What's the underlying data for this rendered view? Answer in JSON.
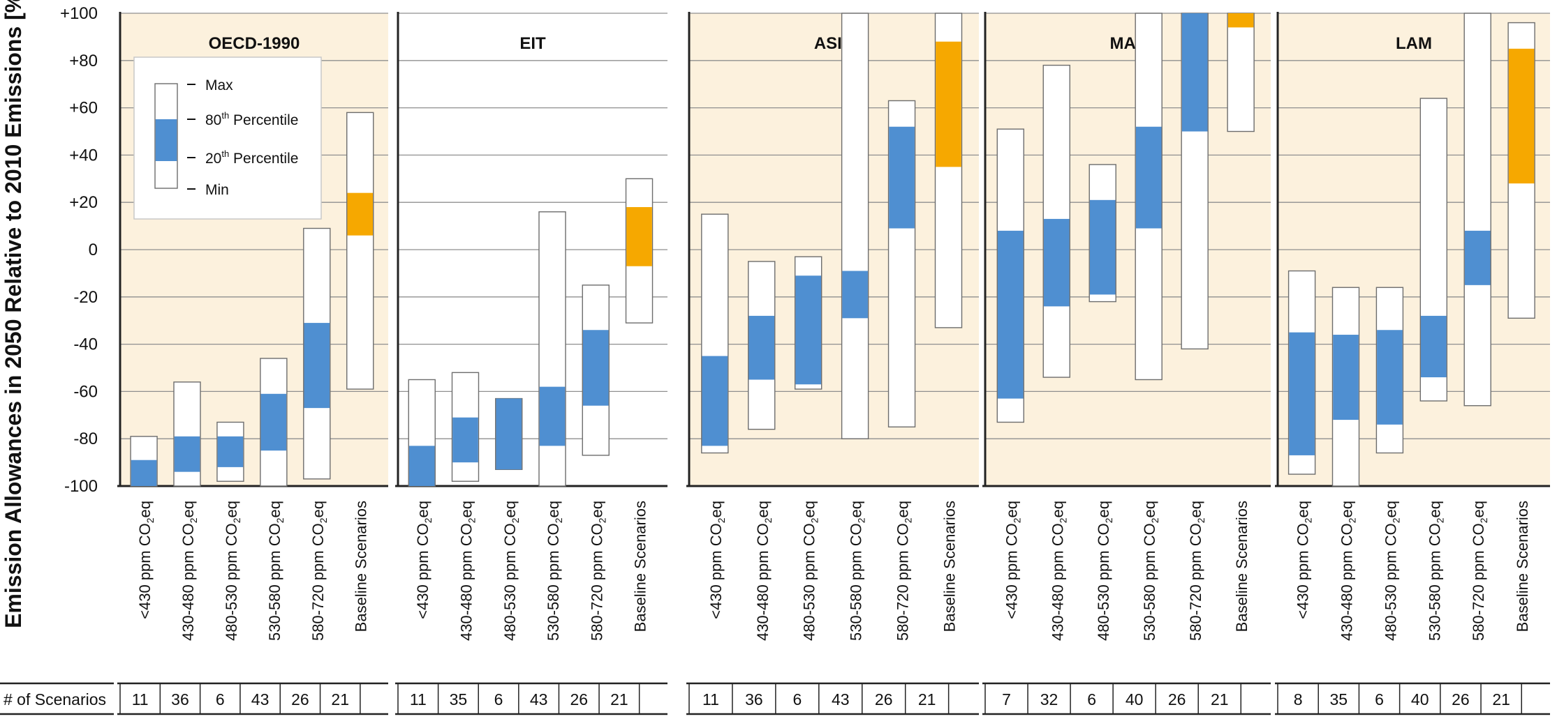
{
  "chart_data": {
    "type": "bar",
    "ylabel": "Emission Allowances in 2050 Relative to 2010 Emissions [%]",
    "ylim": [
      -100,
      100
    ],
    "yticks": [
      "+100",
      "+80",
      "+60",
      "+40",
      "+20",
      "0",
      "-20",
      "-40",
      "-60",
      "-80",
      "-100"
    ],
    "ytick_values": [
      100,
      80,
      60,
      40,
      20,
      0,
      -20,
      -40,
      -60,
      -80,
      -100
    ],
    "categories": [
      "<430 ppm CO2eq",
      "430-480 ppm CO2eq",
      "480-530 ppm CO2eq",
      "530-580 ppm CO2eq",
      "580-720 ppm CO2eq",
      "Baseline Scenarios"
    ],
    "category_labels": [
      {
        "pre": "<430 ppm CO",
        "sub": "2",
        "post": "eq"
      },
      {
        "pre": "430-480 ppm CO",
        "sub": "2",
        "post": "eq"
      },
      {
        "pre": "480-530 ppm CO",
        "sub": "2",
        "post": "eq"
      },
      {
        "pre": "530-580 ppm CO",
        "sub": "2",
        "post": "eq"
      },
      {
        "pre": "580-720 ppm CO",
        "sub": "2",
        "post": "eq"
      },
      {
        "pre": "Baseline Scenarios",
        "sub": "",
        "post": ""
      }
    ],
    "scenario_label": "# of Scenarios",
    "legend": {
      "placement": "top-left",
      "items": [
        {
          "text": "Max",
          "sup": ""
        },
        {
          "text": "80",
          "sup": "th",
          "rest": " Percentile"
        },
        {
          "text": "20",
          "sup": "th",
          "rest": " Percentile"
        },
        {
          "text": "Min",
          "sup": ""
        }
      ]
    },
    "colors": {
      "panel_bg": "#fcf1dd",
      "percentile_fill": "#4f8fd1",
      "baseline_fill": "#f6a800",
      "box_fill": "#ffffff",
      "box_stroke": "#6d6d6d",
      "grid": "#8f8f8f"
    },
    "panels": [
      {
        "name": "OECD-1990",
        "shaded": true,
        "counts": [
          "11",
          "36",
          "6",
          "43",
          "26",
          "21"
        ],
        "bars": [
          {
            "min": -100,
            "p20": -100,
            "p80": -89,
            "max": -79
          },
          {
            "min": -100,
            "p20": -94,
            "p80": -79,
            "max": -56
          },
          {
            "min": -98,
            "p20": -92,
            "p80": -79,
            "max": -73
          },
          {
            "min": -100,
            "p20": -85,
            "p80": -61,
            "max": -46
          },
          {
            "min": -97,
            "p20": -67,
            "p80": -31,
            "max": 9
          },
          {
            "min": -59,
            "p20": 6,
            "p80": 24,
            "max": 58
          }
        ]
      },
      {
        "name": "EIT",
        "shaded": false,
        "counts": [
          "11",
          "35",
          "6",
          "43",
          "26",
          "21"
        ],
        "bars": [
          {
            "min": -100,
            "p20": -100,
            "p80": -83,
            "max": -55
          },
          {
            "min": -98,
            "p20": -90,
            "p80": -71,
            "max": -52
          },
          {
            "min": -93,
            "p20": -93,
            "p80": -63,
            "max": -63
          },
          {
            "min": -100,
            "p20": -83,
            "p80": -58,
            "max": 16
          },
          {
            "min": -87,
            "p20": -66,
            "p80": -34,
            "max": -15
          },
          {
            "min": -31,
            "p20": -7,
            "p80": 18,
            "max": 30
          }
        ]
      },
      {
        "name": "ASIA",
        "shaded": true,
        "counts": [
          "11",
          "36",
          "6",
          "43",
          "26",
          "21"
        ],
        "bars": [
          {
            "min": -86,
            "p20": -83,
            "p80": -45,
            "max": 15
          },
          {
            "min": -76,
            "p20": -55,
            "p80": -28,
            "max": -5
          },
          {
            "min": -59,
            "p20": -57,
            "p80": -11,
            "max": -3
          },
          {
            "min": -80,
            "p20": -29,
            "p80": -9,
            "max": 100
          },
          {
            "min": -75,
            "p20": 9,
            "p80": 52,
            "max": 63
          },
          {
            "min": -33,
            "p20": 35,
            "p80": 88,
            "max": 100
          }
        ]
      },
      {
        "name": "MAF",
        "shaded": true,
        "counts": [
          "7",
          "32",
          "6",
          "40",
          "26",
          "21"
        ],
        "bars": [
          {
            "min": -73,
            "p20": -63,
            "p80": 8,
            "max": 51
          },
          {
            "min": -54,
            "p20": -24,
            "p80": 13,
            "max": 78
          },
          {
            "min": -22,
            "p20": -19,
            "p80": 21,
            "max": 36
          },
          {
            "min": -55,
            "p20": 9,
            "p80": 52,
            "max": 100
          },
          {
            "min": -42,
            "p20": 50,
            "p80": 100,
            "max": 100
          },
          {
            "min": 50,
            "p20": 94,
            "p80": 100,
            "max": 100
          }
        ]
      },
      {
        "name": "LAM",
        "shaded": true,
        "counts": [
          "8",
          "35",
          "6",
          "40",
          "26",
          "21"
        ],
        "bars": [
          {
            "min": -95,
            "p20": -87,
            "p80": -35,
            "max": -9
          },
          {
            "min": -100,
            "p20": -72,
            "p80": -36,
            "max": -16
          },
          {
            "min": -86,
            "p20": -74,
            "p80": -34,
            "max": -16
          },
          {
            "min": -64,
            "p20": -54,
            "p80": -28,
            "max": 64
          },
          {
            "min": -66,
            "p20": -15,
            "p80": 8,
            "max": 100
          },
          {
            "min": -29,
            "p20": 28,
            "p80": 85,
            "max": 96
          }
        ]
      }
    ]
  }
}
